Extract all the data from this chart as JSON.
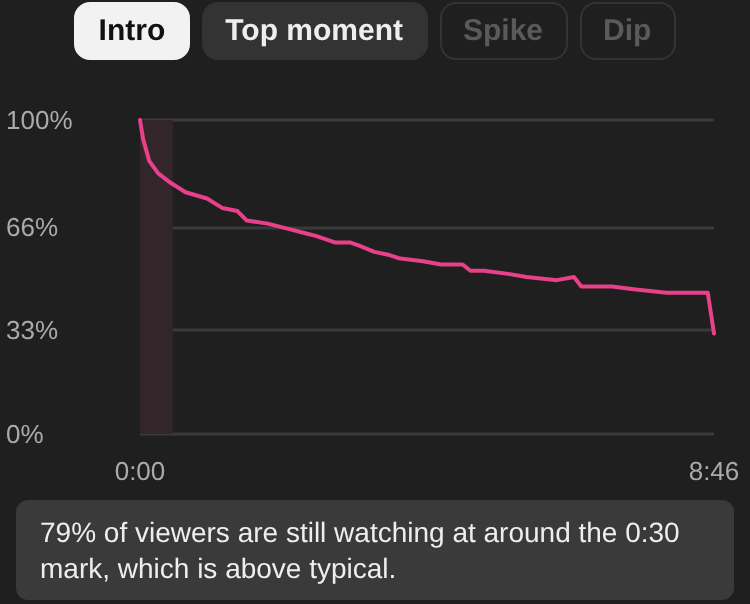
{
  "chart_data": {
    "type": "line",
    "annotations": [
      "Intro",
      "Top moment",
      "Spike",
      "Dip",
      "79% of viewers are still watching at around the 0:30 mark, which is above typical."
    ],
    "x": [
      0,
      2.8,
      8.4,
      16.7,
      28,
      41.8,
      61.4,
      75.3,
      89.3,
      97.7,
      117,
      139.5,
      150.6,
      161.8,
      178.5,
      192.4,
      200.8,
      214.8,
      228.7,
      237,
      259.3,
      276,
      295.6,
      302.8,
      315.2,
      337.4,
      354.2,
      382.1,
      397.7,
      404.4,
      432.3,
      454.5,
      482.5,
      520.3,
      526
    ],
    "series": [
      {
        "color": "#e8408a",
        "values": [
          100,
          94,
          87,
          83,
          80,
          77,
          75,
          72,
          71,
          68,
          67,
          65,
          64,
          63,
          61,
          61,
          60,
          58,
          57,
          56,
          55,
          54,
          54,
          52,
          52,
          51,
          50,
          49,
          50,
          47,
          47,
          46,
          45,
          45,
          32
        ]
      }
    ],
    "xlim": [
      0,
      526
    ],
    "xticks": [
      {
        "value": 0,
        "label": "0:00"
      },
      {
        "value": 526,
        "label": "8:46"
      }
    ],
    "ylim": [
      0,
      100
    ],
    "yticks": [
      {
        "value": 0,
        "label": "0%"
      },
      {
        "value": 33,
        "label": "33%"
      },
      {
        "value": 66,
        "label": "66%"
      },
      {
        "value": 100,
        "label": "100%"
      }
    ],
    "bands": [
      {
        "axis": "x",
        "from": 0,
        "to": 30,
        "color": "#33262b"
      }
    ],
    "grid": "y",
    "marker": "none",
    "line_style": "solid"
  }
}
